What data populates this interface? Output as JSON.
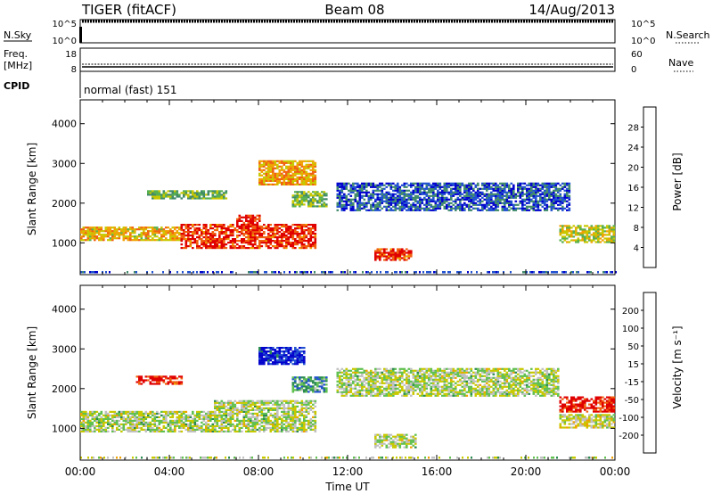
{
  "header": {
    "radar": "TIGER (fitACF)",
    "beam": "Beam 08",
    "date": "14/Aug/2013"
  },
  "status_panels": {
    "nsky": {
      "label": "N.Sky",
      "ticks": [
        "10^5",
        "10^0"
      ],
      "right_ticks": [
        "10^5",
        "10^0"
      ],
      "right_label": "N.Search"
    },
    "freq": {
      "label_line1": "Freq.",
      "label_line2": "[MHz]",
      "ticks": [
        "18",
        "8"
      ],
      "right_ticks": [
        "60",
        "0"
      ],
      "right_label": "Nave"
    },
    "cpid": {
      "label": "CPID",
      "mode": "normal (fast) 151"
    }
  },
  "chart_data": [
    {
      "type": "heatmap",
      "parameter": "power",
      "ylabel": "Slant Range [km]",
      "ylim": [
        200,
        4600
      ],
      "yticks": [
        "1000",
        "2000",
        "3000",
        "4000"
      ],
      "xlim": [
        0,
        24
      ],
      "colorbar": {
        "label": "Power [dB]",
        "ticks": [
          "28",
          "24",
          "20",
          "16",
          "12",
          "8",
          "4"
        ],
        "colors": [
          "#0000cc",
          "#2050d0",
          "#408a6a",
          "#58b050",
          "#c8c800",
          "#f0a000",
          "#f06010",
          "#e00000"
        ]
      },
      "features": [
        {
          "t": [
            0.0,
            4.5
          ],
          "r": [
            1050,
            1400
          ],
          "level": 0.65
        },
        {
          "t": [
            4.5,
            10.5
          ],
          "r": [
            850,
            1450
          ],
          "level": 0.9
        },
        {
          "t": [
            7.0,
            8.0
          ],
          "r": [
            1350,
            1700
          ],
          "level": 0.95
        },
        {
          "t": [
            8.0,
            10.5
          ],
          "r": [
            2450,
            3050
          ],
          "level": 0.7
        },
        {
          "t": [
            3.0,
            6.5
          ],
          "r": [
            2100,
            2300
          ],
          "level": 0.45
        },
        {
          "t": [
            9.5,
            11.0
          ],
          "r": [
            1900,
            2300
          ],
          "level": 0.45
        },
        {
          "t": [
            13.2,
            14.8
          ],
          "r": [
            550,
            850
          ],
          "level": 0.9
        },
        {
          "t": [
            11.5,
            22.0
          ],
          "r": [
            1800,
            2500
          ],
          "level": 0.2
        },
        {
          "t": [
            21.5,
            24.0
          ],
          "r": [
            1000,
            1450
          ],
          "level": 0.55
        }
      ]
    },
    {
      "type": "heatmap",
      "parameter": "velocity",
      "ylabel": "Slant Range [km]",
      "ylim": [
        200,
        4600
      ],
      "yticks": [
        "1000",
        "2000",
        "3000",
        "4000"
      ],
      "xlim": [
        0,
        24
      ],
      "xlabel": "Time UT",
      "xticks": [
        "00:00",
        "04:00",
        "08:00",
        "12:00",
        "16:00",
        "20:00",
        "00:00"
      ],
      "colorbar": {
        "label": "Velocity [m s⁻¹]",
        "ticks": [
          "200",
          "100",
          "50",
          "15",
          "-15",
          "-50",
          "-100",
          "-200"
        ],
        "colors": [
          "#e00000",
          "#f06010",
          "#f0a000",
          "#c8c800",
          "#c0c0c0",
          "#60c050",
          "#2a8a50",
          "#2050d0",
          "#0000cc"
        ]
      },
      "features": [
        {
          "t": [
            0.0,
            6.0
          ],
          "r": [
            900,
            1400
          ],
          "level": 0.5
        },
        {
          "t": [
            6.0,
            10.5
          ],
          "r": [
            900,
            1700
          ],
          "level": 0.5
        },
        {
          "t": [
            8.0,
            10.0
          ],
          "r": [
            2600,
            3050
          ],
          "level": 0.95
        },
        {
          "t": [
            2.5,
            4.5
          ],
          "r": [
            2100,
            2300
          ],
          "level": 0.05
        },
        {
          "t": [
            9.5,
            11.0
          ],
          "r": [
            1900,
            2300
          ],
          "level": 0.7
        },
        {
          "t": [
            13.2,
            15.0
          ],
          "r": [
            500,
            850
          ],
          "level": 0.5
        },
        {
          "t": [
            11.5,
            21.5
          ],
          "r": [
            1800,
            2500
          ],
          "level": 0.5
        },
        {
          "t": [
            21.5,
            24.0
          ],
          "r": [
            1400,
            1800
          ],
          "level": 0.05
        },
        {
          "t": [
            21.5,
            24.0
          ],
          "r": [
            1000,
            1350
          ],
          "level": 0.45
        }
      ]
    }
  ]
}
